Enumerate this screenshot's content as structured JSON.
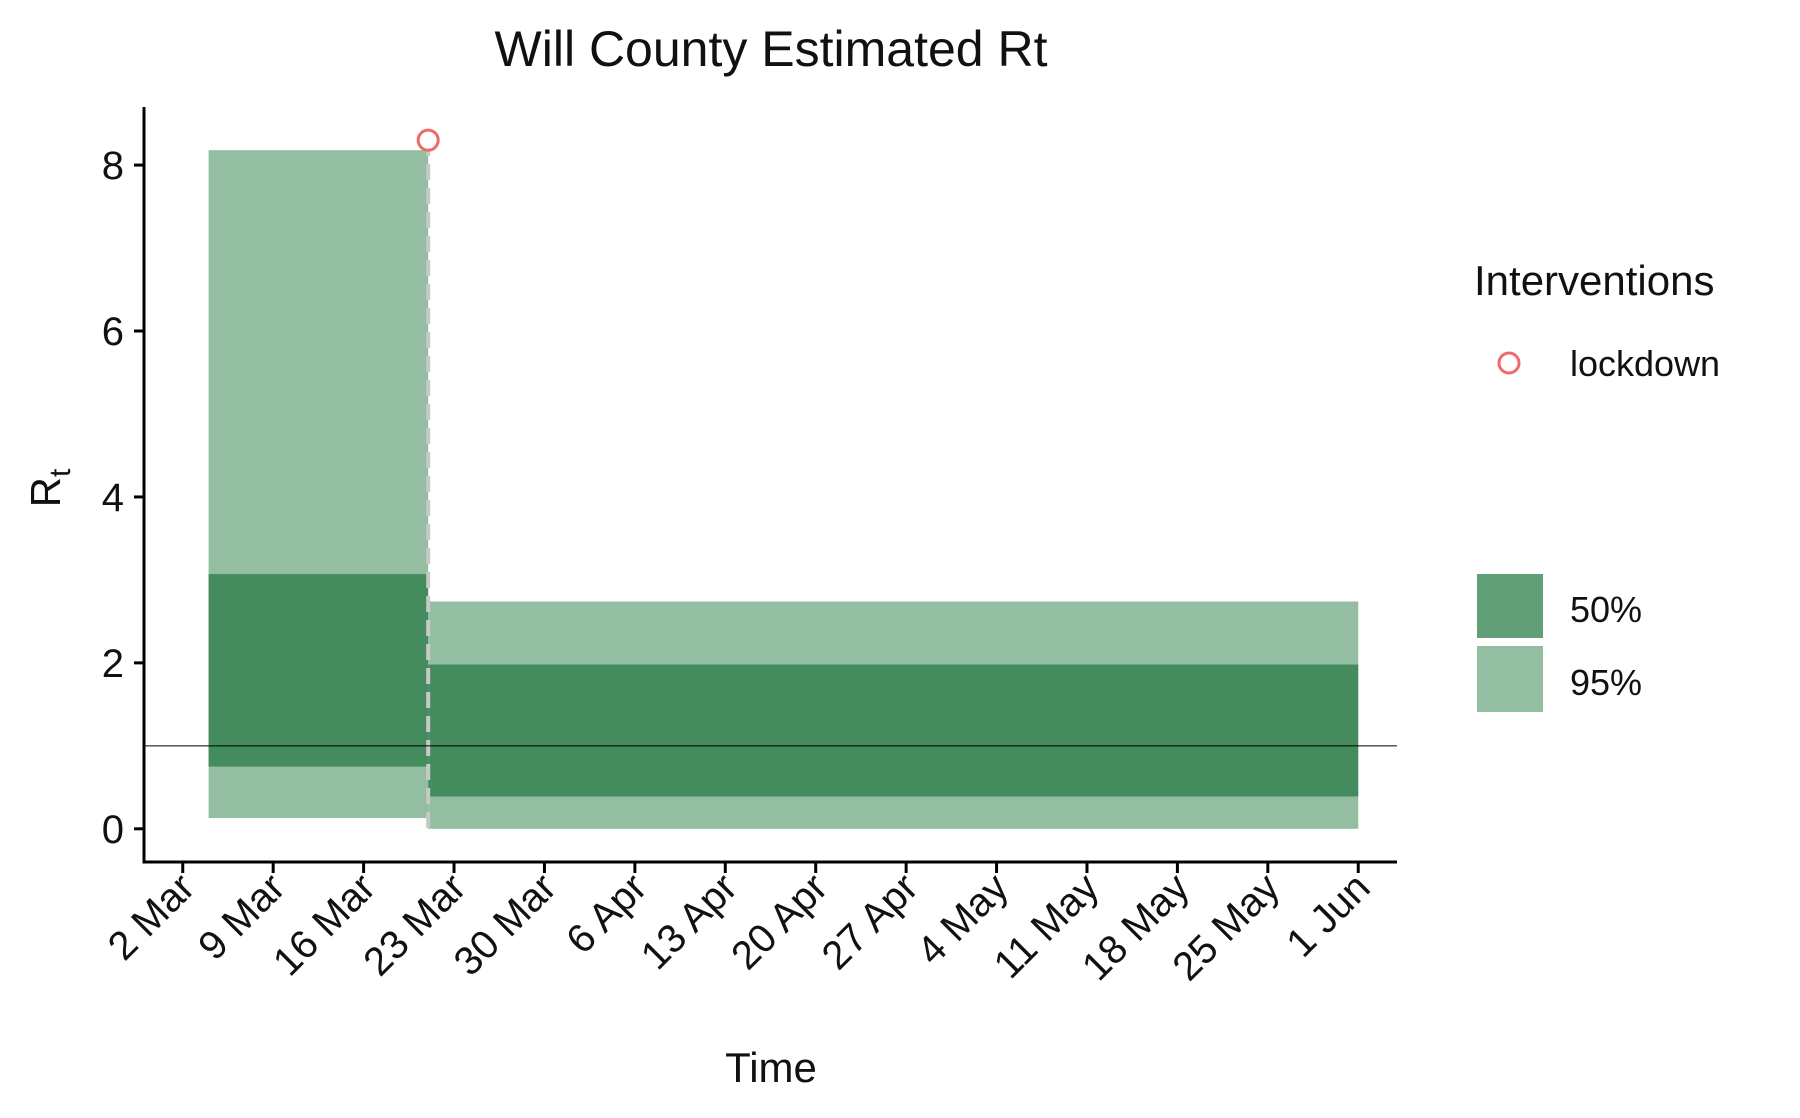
{
  "chart_data": {
    "type": "area",
    "title": "Will County Estimated Rt",
    "xlabel": "Time",
    "ylabel": "R",
    "ylabel_subscript": "t",
    "ylim": [
      -0.4,
      8.7
    ],
    "xlim": [
      "2020-02-28",
      "2020-06-04"
    ],
    "y_ticks": [
      0,
      2,
      4,
      6,
      8
    ],
    "x_ticks": [
      {
        "date": "2020-03-02",
        "label": "2 Mar"
      },
      {
        "date": "2020-03-09",
        "label": "9 Mar"
      },
      {
        "date": "2020-03-16",
        "label": "16 Mar"
      },
      {
        "date": "2020-03-23",
        "label": "23 Mar"
      },
      {
        "date": "2020-03-30",
        "label": "30 Mar"
      },
      {
        "date": "2020-04-06",
        "label": "6 Apr"
      },
      {
        "date": "2020-04-13",
        "label": "13 Apr"
      },
      {
        "date": "2020-04-20",
        "label": "20 Apr"
      },
      {
        "date": "2020-04-27",
        "label": "27 Apr"
      },
      {
        "date": "2020-05-04",
        "label": "4 May"
      },
      {
        "date": "2020-05-11",
        "label": "11 May"
      },
      {
        "date": "2020-05-18",
        "label": "18 May"
      },
      {
        "date": "2020-05-25",
        "label": "25 May"
      },
      {
        "date": "2020-06-01",
        "label": "1 Jun"
      }
    ],
    "segments": [
      {
        "start": "2020-03-04",
        "end": "2020-03-21",
        "ci95": [
          0.13,
          8.18
        ],
        "ci50": [
          0.75,
          3.07
        ]
      },
      {
        "start": "2020-03-21",
        "end": "2020-06-01",
        "ci95": [
          0.0,
          2.74
        ],
        "ci50": [
          0.39,
          1.98
        ]
      }
    ],
    "reference_line": 1.0,
    "interventions": [
      {
        "name": "lockdown",
        "date": "2020-03-21",
        "y": 8.3
      }
    ],
    "legend": {
      "interventions_title": "Interventions",
      "intervention_items": [
        "lockdown"
      ],
      "band_items": [
        "50%",
        "95%"
      ],
      "position": "right"
    },
    "colors": {
      "ci50": "#448c5e",
      "ci95": "#94bea2",
      "intervention": "#f06a6a",
      "vline": "#c8c8c8",
      "reference": "#000000",
      "axis": "#000000"
    }
  }
}
